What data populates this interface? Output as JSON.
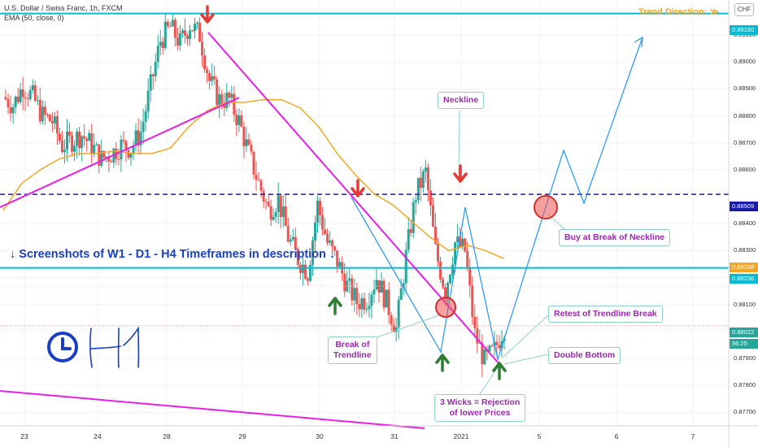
{
  "header": {
    "symbol_line": "U.S. Dollar / Swiss Franc, 1h, FXCM",
    "ema_line": "EMA (50, close, 0)",
    "trend_direction": "Trend Direction:",
    "trend_glyph": "≫",
    "currency": "CHF"
  },
  "annotations": {
    "timeframes_note": "↓ Screenshots of W1 - D1 - H4 Timeframes in description ↓",
    "neckline": "Neckline",
    "buy_break": "Buy at Break of Neckline",
    "retest": "Retest of Trendline Break",
    "double_bottom": "Double Bottom",
    "break_trendline_1": "Break of",
    "break_trendline_2": "Trendline",
    "wicks_1": "3 Wicks = Rejection",
    "wicks_2": "of lower Prices"
  },
  "colors": {
    "up_candle": "#26a69a",
    "down_candle": "#ef5350",
    "ema": "#f5a623",
    "level": "#00bcd4",
    "neckline": "#1a1aa8",
    "trendline": "#e91ee6",
    "pattern": "#2196f3",
    "arrow_down": "#e53935",
    "arrow_up": "#2e7d32"
  },
  "chart_data": {
    "type": "candlestick",
    "x_labels": [
      "23",
      "24",
      "28",
      "29",
      "30",
      "31",
      "2021",
      "5",
      "6",
      "7"
    ],
    "y_ticks": [
      0.877,
      0.878,
      0.879,
      0.881,
      0.882,
      0.883,
      0.884,
      0.886,
      0.887,
      0.888,
      0.889,
      0.89,
      0.891
    ],
    "ylim": [
      0.8765,
      0.8923
    ],
    "levels": {
      "resistance": "0.89180",
      "neckline": "0.88509",
      "ema_value": "0.88268",
      "support": "0.88236",
      "current_price": "0.88022",
      "countdown": "56:25"
    },
    "ema_series": [
      0.8845,
      0.8855,
      0.886,
      0.8864,
      0.8866,
      0.8866,
      0.8867,
      0.8866,
      0.8866,
      0.8868,
      0.8876,
      0.8882,
      0.8885,
      0.8885,
      0.8886,
      0.8886,
      0.8883,
      0.8876,
      0.8866,
      0.8858,
      0.8851,
      0.8847,
      0.8841,
      0.8835,
      0.883,
      0.8832,
      0.883,
      0.8827
    ],
    "candle_path": [
      0.8887,
      0.8884,
      0.8891,
      0.8887,
      0.888,
      0.8878,
      0.8869,
      0.8871,
      0.8873,
      0.8869,
      0.8864,
      0.8866,
      0.8869,
      0.8868,
      0.8874,
      0.8891,
      0.8908,
      0.8913,
      0.8907,
      0.8914,
      0.891,
      0.8893,
      0.8886,
      0.8886,
      0.8878,
      0.8866,
      0.8855,
      0.8845,
      0.8849,
      0.8835,
      0.8827,
      0.8822,
      0.8847,
      0.8833,
      0.8826,
      0.8817,
      0.8811,
      0.8812,
      0.882,
      0.8811,
      0.8801,
      0.8828,
      0.8851,
      0.8859,
      0.883,
      0.8815,
      0.8833,
      0.883,
      0.8799,
      0.8789,
      0.8793,
      0.8802
    ]
  }
}
